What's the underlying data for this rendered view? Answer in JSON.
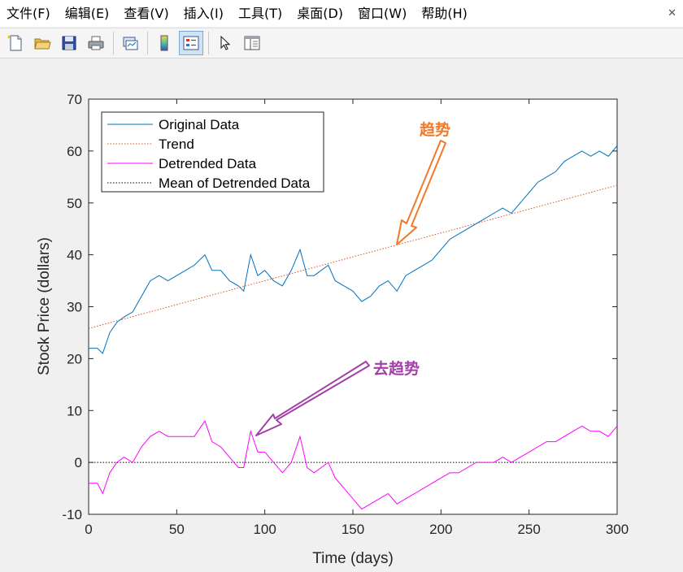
{
  "menu": {
    "items": [
      "文件(F)",
      "编辑(E)",
      "查看(V)",
      "插入(I)",
      "工具(T)",
      "桌面(D)",
      "窗口(W)",
      "帮助(H)"
    ],
    "close_glyph": "✕"
  },
  "toolbar": {
    "buttons": [
      "new-figure-icon",
      "open-folder-icon",
      "save-icon",
      "print-icon",
      "link-plot-icon",
      "colorbar-icon",
      "legend-icon",
      "pointer-icon",
      "property-inspector-icon"
    ],
    "pressed": "legend-icon"
  },
  "annotations": {
    "trend": {
      "text": "趋势",
      "color": "#f07a2a"
    },
    "detrend": {
      "text": "去趋势",
      "color": "#a23fa8"
    }
  },
  "chart_data": {
    "type": "line",
    "xlabel": "Time (days)",
    "ylabel": "Stock Price (dollars)",
    "xlim": [
      0,
      300
    ],
    "ylim": [
      -10,
      70
    ],
    "xticks": [
      0,
      50,
      100,
      150,
      200,
      250,
      300
    ],
    "yticks": [
      -10,
      0,
      10,
      20,
      30,
      40,
      50,
      60,
      70
    ],
    "grid": false,
    "legend_position": "top-left",
    "series": [
      {
        "name": "Original Data",
        "color": "#0072bd",
        "style": "solid",
        "x": [
          0,
          5,
          8,
          12,
          16,
          20,
          25,
          30,
          35,
          40,
          45,
          50,
          55,
          60,
          66,
          70,
          75,
          80,
          85,
          88,
          92,
          96,
          100,
          105,
          110,
          115,
          120,
          124,
          128,
          132,
          136,
          140,
          145,
          150,
          155,
          160,
          165,
          170,
          175,
          180,
          185,
          190,
          195,
          200,
          205,
          210,
          215,
          220,
          225,
          230,
          235,
          240,
          245,
          250,
          255,
          260,
          265,
          270,
          275,
          280,
          285,
          290,
          295,
          300
        ],
        "y": [
          22,
          22,
          21,
          25,
          27,
          28,
          29,
          32,
          35,
          36,
          35,
          36,
          37,
          38,
          40,
          37,
          37,
          35,
          34,
          33,
          40,
          36,
          37,
          35,
          34,
          37,
          41,
          36,
          36,
          37,
          38,
          35,
          34,
          33,
          31,
          32,
          34,
          35,
          33,
          36,
          37,
          38,
          39,
          41,
          43,
          44,
          45,
          46,
          47,
          48,
          49,
          48,
          50,
          52,
          54,
          55,
          56,
          58,
          59,
          60,
          59,
          60,
          59,
          61
        ]
      },
      {
        "name": "Trend",
        "color": "#d95319",
        "style": "dotted",
        "x": [
          0,
          300
        ],
        "y": [
          25.8,
          53.4
        ]
      },
      {
        "name": "Detrended Data",
        "color": "#ff00ff",
        "style": "solid",
        "x": [
          0,
          5,
          8,
          12,
          16,
          20,
          25,
          30,
          35,
          40,
          45,
          50,
          55,
          60,
          66,
          70,
          75,
          80,
          85,
          88,
          92,
          96,
          100,
          105,
          110,
          115,
          120,
          124,
          128,
          132,
          136,
          140,
          145,
          150,
          155,
          160,
          165,
          170,
          175,
          180,
          185,
          190,
          195,
          200,
          205,
          210,
          215,
          220,
          225,
          230,
          235,
          240,
          245,
          250,
          255,
          260,
          265,
          270,
          275,
          280,
          285,
          290,
          295,
          300
        ],
        "y": [
          -4,
          -4,
          -6,
          -2,
          0,
          1,
          0,
          3,
          5,
          6,
          5,
          5,
          5,
          5,
          8,
          4,
          3,
          1,
          -1,
          -1,
          6,
          2,
          2,
          0,
          -2,
          0,
          5,
          -1,
          -2,
          -1,
          0,
          -3,
          -5,
          -7,
          -9,
          -8,
          -7,
          -6,
          -8,
          -7,
          -6,
          -5,
          -4,
          -3,
          -2,
          -2,
          -1,
          0,
          0,
          0,
          1,
          0,
          1,
          2,
          3,
          4,
          4,
          5,
          6,
          7,
          6,
          6,
          5,
          7
        ]
      },
      {
        "name": "Mean of Detrended Data",
        "color": "#000000",
        "style": "dotted",
        "x": [
          0,
          300
        ],
        "y": [
          0,
          0
        ]
      }
    ]
  }
}
